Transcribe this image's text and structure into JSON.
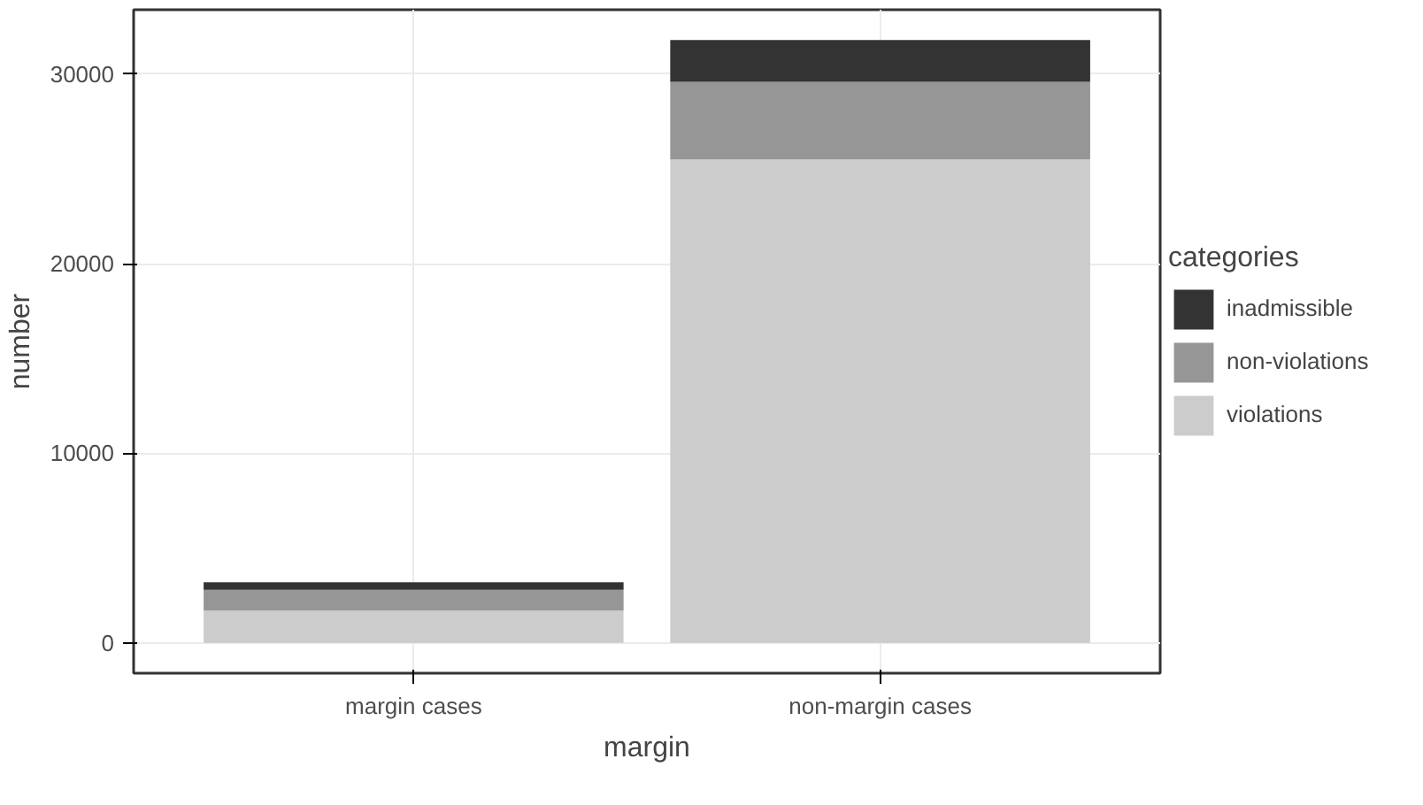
{
  "chart_data": {
    "type": "bar",
    "stacked": true,
    "xlabel": "margin",
    "ylabel": "number",
    "legend_title": "categories",
    "legend": "right",
    "grid": true,
    "categories": [
      "margin cases",
      "non-margin cases"
    ],
    "ylim": [
      -1600,
      33400
    ],
    "yticks": [
      0,
      10000,
      20000,
      30000
    ],
    "series": [
      {
        "name": "violations",
        "color": "#cccccc",
        "values": [
          1700,
          25500
        ]
      },
      {
        "name": "non-violations",
        "color": "#969696",
        "values": [
          1100,
          4100
        ]
      },
      {
        "name": "inadmissible",
        "color": "#333333",
        "values": [
          400,
          2200
        ]
      }
    ]
  }
}
